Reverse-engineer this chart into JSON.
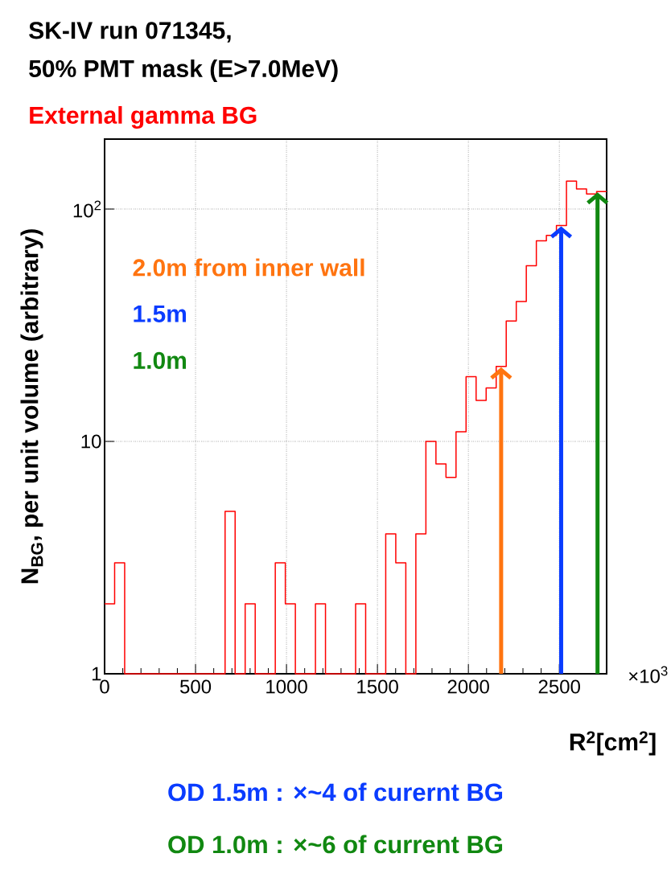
{
  "chart_data": {
    "type": "histogram",
    "title": "SK-IV run 071345,",
    "subtitle": "50% PMT mask  (E>7.0MeV)",
    "xlabel": "R$^{2}$[cm$^{2}$]",
    "ylabel": "N$_{BG}$, per unit volume (arbitrary)",
    "annotations": [
      "External gamma BG",
      "×10$^{3}$",
      "OD 1.5m : ×~4 of curernt BG",
      "OD 1.0m : ×~6 of current BG"
    ],
    "bins": [
      0,
      55.2,
      110.4,
      165.6,
      220.8,
      276,
      331.2,
      386.4,
      441.6,
      496.8,
      552,
      607.2,
      662.4,
      717.6,
      772.8,
      828,
      883.2,
      938.4,
      993.6,
      1048.8,
      1104,
      1159.2,
      1214.4,
      1269.6,
      1324.8,
      1380,
      1435.2,
      1490.4,
      1545.6,
      1600.8,
      1656,
      1711.2,
      1766.4,
      1821.6,
      1876.8,
      1932,
      1987.2,
      2042.4,
      2097.6,
      2152.8,
      2208,
      2263.2,
      2318.4,
      2373.6,
      2428.8,
      2484,
      2539.2,
      2594.4,
      2649.6,
      2704.8,
      2760
    ],
    "values": [
      2,
      3,
      1,
      1,
      1,
      1,
      1,
      1,
      1,
      1,
      1,
      1,
      5,
      1,
      2,
      1,
      1,
      3,
      2,
      1,
      1,
      2,
      1,
      1,
      1,
      2,
      1,
      1,
      4,
      3,
      1,
      4,
      10,
      8,
      7,
      11,
      19,
      15,
      17,
      21,
      33,
      40,
      57,
      73,
      77,
      85,
      132,
      122,
      116,
      119
    ],
    "color": "#ff0000",
    "xlim": [
      0,
      2760
    ],
    "xticks": [
      0,
      500,
      1000,
      1500,
      2000,
      2500
    ],
    "ylim": [
      1,
      200
    ],
    "yticks": [
      1,
      10,
      {
        "value": 100,
        "label": "10$^{2}$"
      }
    ],
    "log": "y",
    "grid": true,
    "ref_lines": [
      {
        "axis": "x",
        "value": 2180,
        "label": "2.0m from inner wall",
        "color": "#ff7410"
      },
      {
        "axis": "x",
        "value": 2510,
        "label": "1.5m",
        "color": "#0a3cff"
      },
      {
        "axis": "x",
        "value": 2710,
        "label": "1.0m",
        "color": "#118811"
      }
    ]
  }
}
